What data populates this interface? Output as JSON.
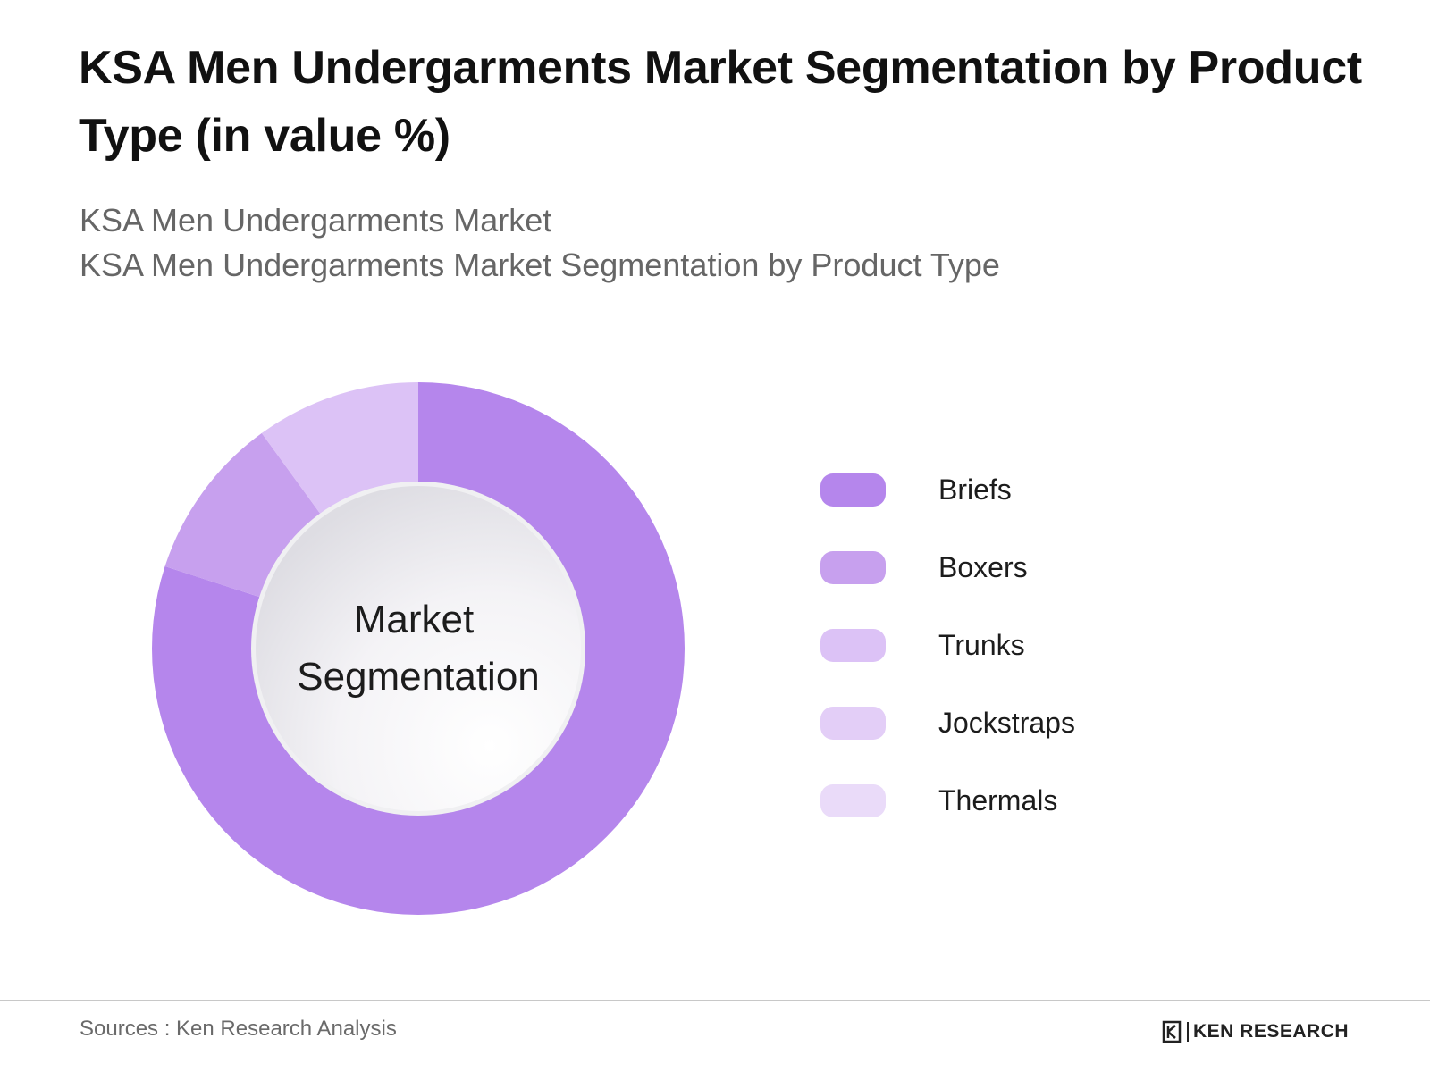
{
  "header": {
    "title": "KSA Men Undergarments Market Segmentation by Product Type (in value %)",
    "subtitle_lines": [
      "KSA Men Undergarments Market",
      "KSA Men Undergarments Market Segmentation by Product Type"
    ]
  },
  "chart_data": {
    "type": "pie",
    "variant": "donut",
    "center_label_lines": [
      "Market",
      "Segmentation"
    ],
    "categories": [
      "Briefs",
      "Boxers",
      "Trunks",
      "Jockstraps",
      "Thermals"
    ],
    "values": [
      80,
      10,
      10,
      0,
      0
    ],
    "colors": [
      "#b586ec",
      "#c7a0ee",
      "#dcc2f6",
      "#e3cef7",
      "#eadbf9"
    ],
    "legend_position": "right"
  },
  "footer": {
    "source": "Sources : Ken Research Analysis",
    "brand": "KEN RESEARCH"
  }
}
